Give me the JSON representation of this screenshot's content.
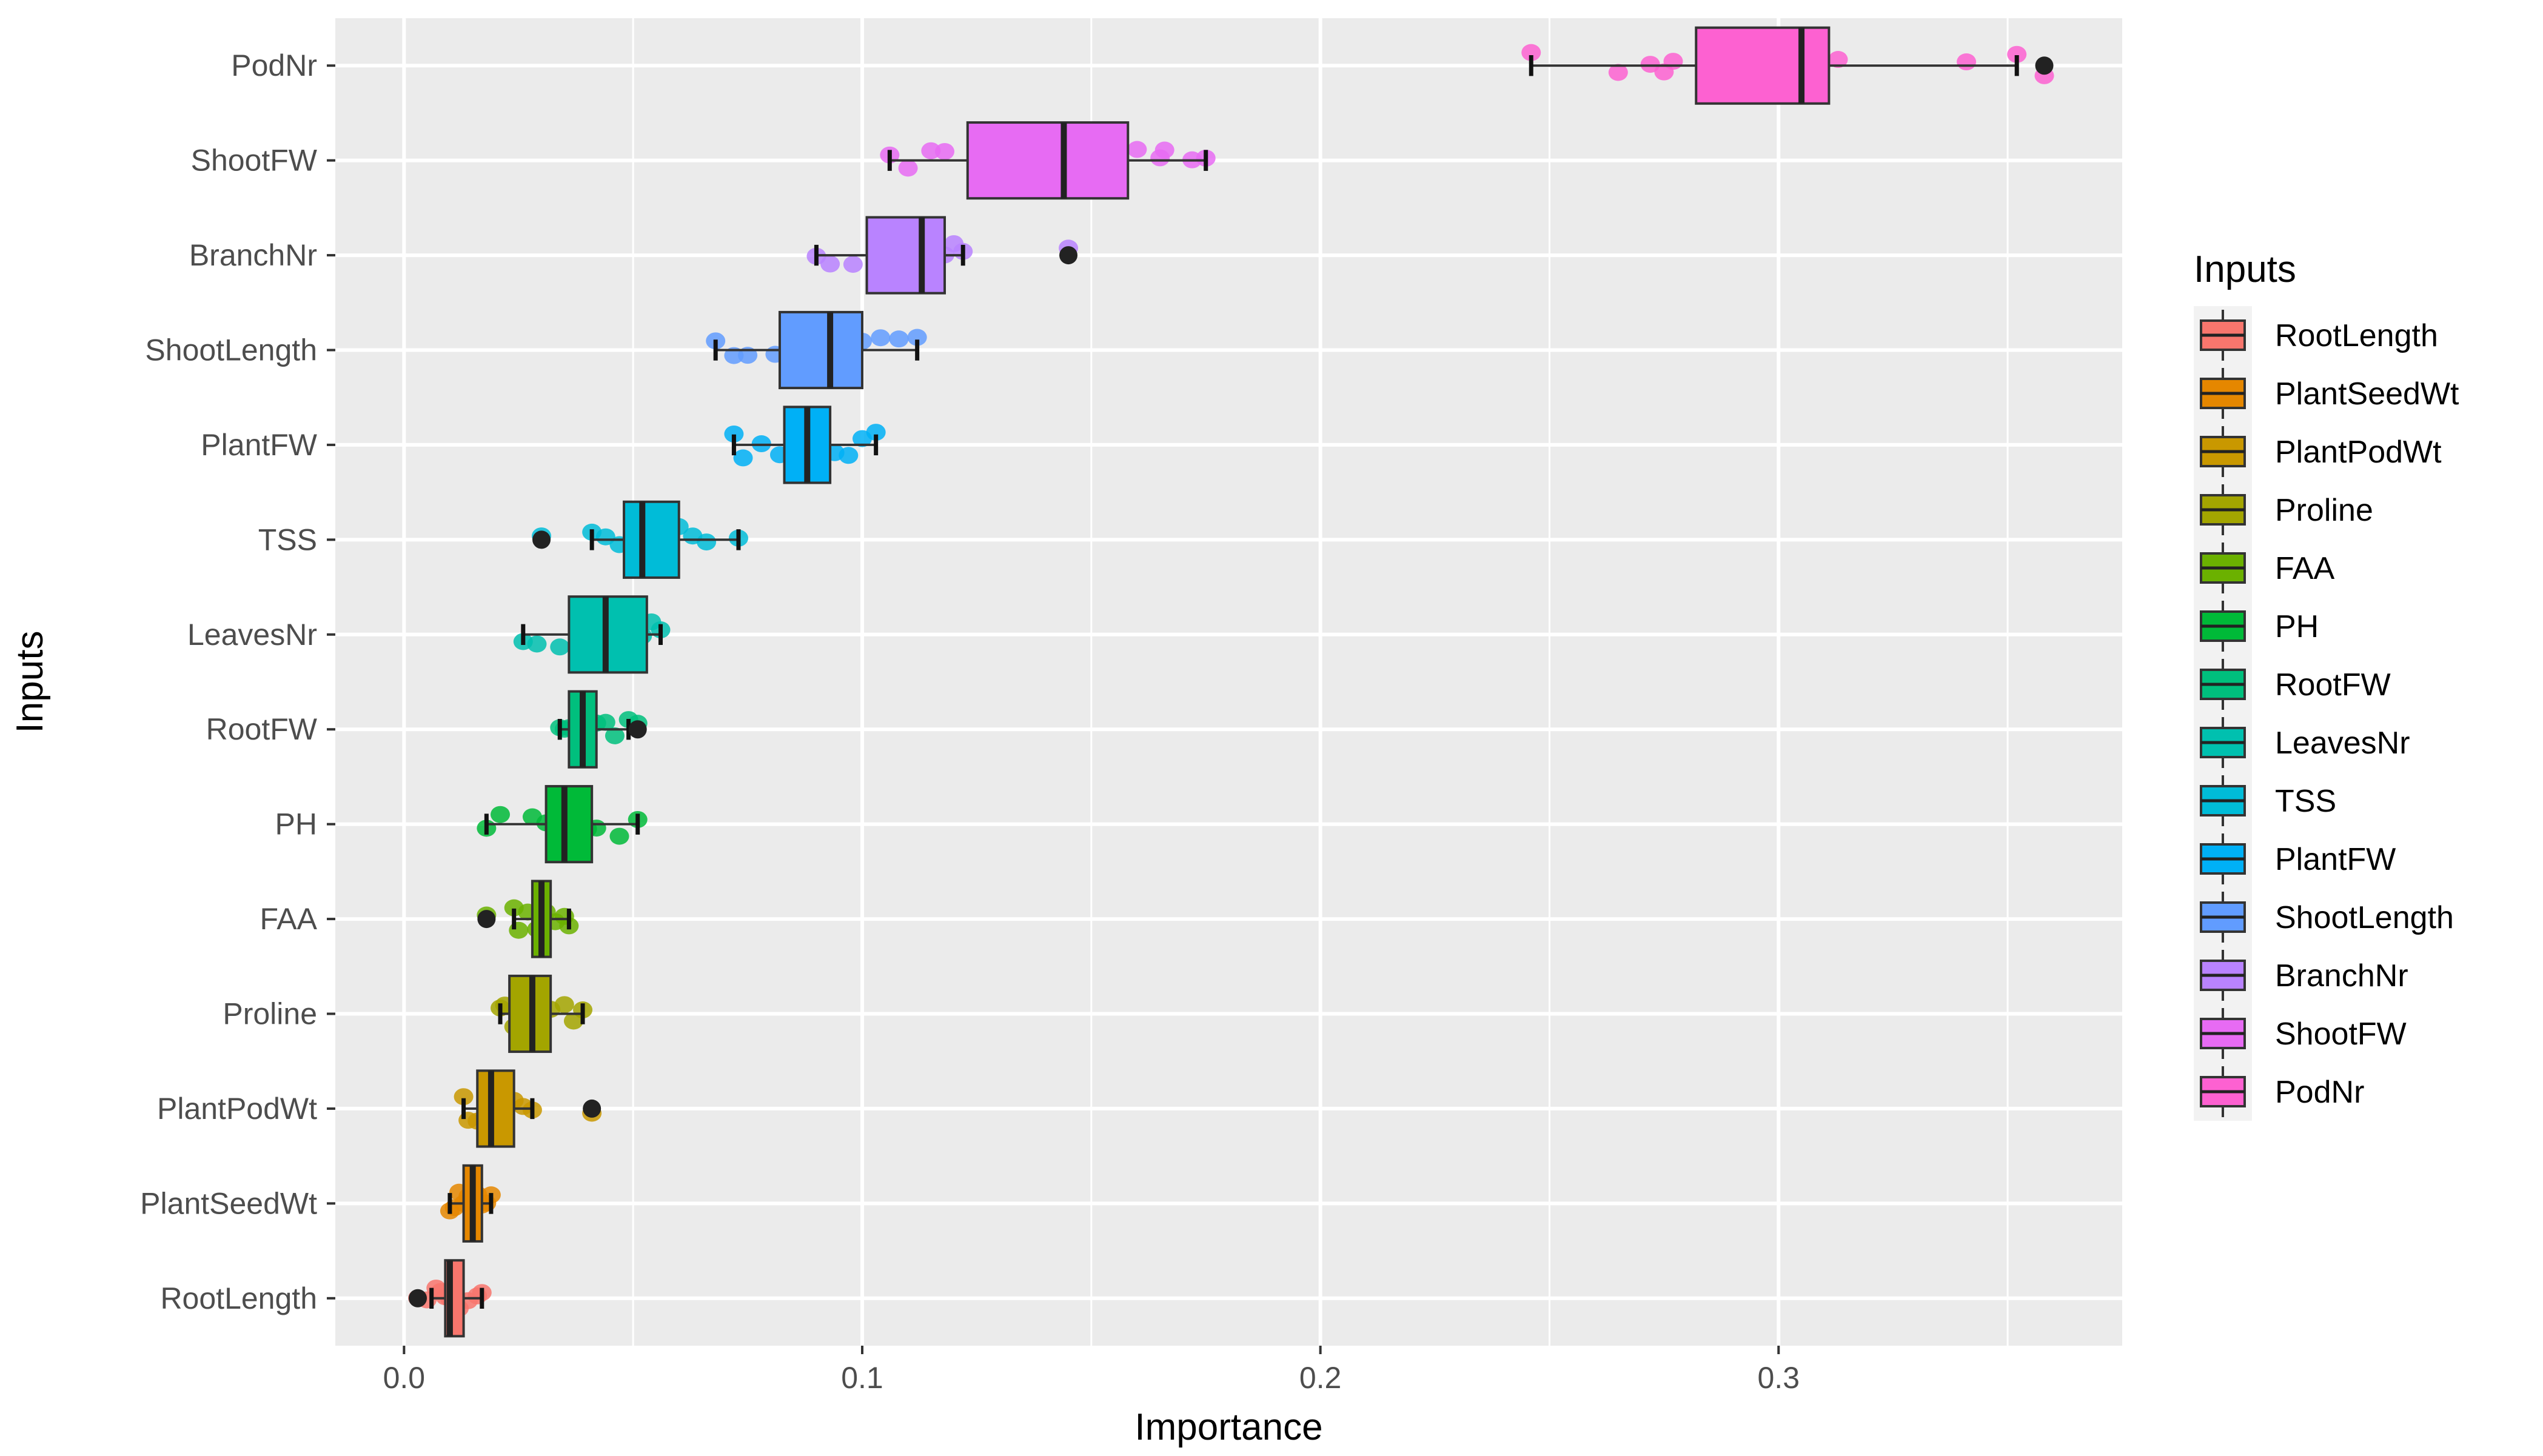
{
  "chart_data": {
    "type": "boxplot",
    "orientation": "horizontal",
    "title": "",
    "xlabel": "Importance",
    "ylabel": "Inputs",
    "xlim": [
      -0.015,
      0.375
    ],
    "xticks": [
      0.0,
      0.1,
      0.2,
      0.3
    ],
    "xtick_labels": [
      "0.0",
      "0.1",
      "0.2",
      "0.3"
    ],
    "grid": true,
    "legend": {
      "title": "Inputs",
      "position": "right"
    },
    "series": [
      {
        "name": "RootLength",
        "color": "#F8766D",
        "min": 0.006,
        "q1": 0.009,
        "median": 0.01,
        "q3": 0.013,
        "max": 0.017,
        "outliers": [
          0.003
        ],
        "points": [
          0.003,
          0.005,
          0.007,
          0.008,
          0.009,
          0.01,
          0.011,
          0.012,
          0.014,
          0.016,
          0.017
        ]
      },
      {
        "name": "PlantSeedWt",
        "color": "#E58700",
        "min": 0.01,
        "q1": 0.013,
        "median": 0.015,
        "q3": 0.017,
        "max": 0.019,
        "outliers": [],
        "points": [
          0.01,
          0.011,
          0.012,
          0.013,
          0.014,
          0.015,
          0.016,
          0.017,
          0.018,
          0.019
        ]
      },
      {
        "name": "PlantPodWt",
        "color": "#C99800",
        "min": 0.013,
        "q1": 0.016,
        "median": 0.019,
        "q3": 0.024,
        "max": 0.028,
        "outliers": [
          0.041
        ],
        "points": [
          0.013,
          0.014,
          0.016,
          0.018,
          0.02,
          0.022,
          0.024,
          0.026,
          0.028,
          0.041
        ]
      },
      {
        "name": "Proline",
        "color": "#A3A500",
        "min": 0.021,
        "q1": 0.023,
        "median": 0.028,
        "q3": 0.032,
        "max": 0.039,
        "outliers": [],
        "points": [
          0.021,
          0.022,
          0.024,
          0.026,
          0.028,
          0.03,
          0.032,
          0.035,
          0.037,
          0.039
        ]
      },
      {
        "name": "FAA",
        "color": "#6BB100",
        "min": 0.024,
        "q1": 0.028,
        "median": 0.03,
        "q3": 0.032,
        "max": 0.036,
        "outliers": [
          0.018
        ],
        "points": [
          0.018,
          0.024,
          0.025,
          0.027,
          0.029,
          0.03,
          0.031,
          0.033,
          0.035,
          0.036
        ]
      },
      {
        "name": "PH",
        "color": "#00BA38",
        "min": 0.018,
        "q1": 0.031,
        "median": 0.035,
        "q3": 0.041,
        "max": 0.051,
        "outliers": [],
        "points": [
          0.018,
          0.021,
          0.028,
          0.031,
          0.033,
          0.035,
          0.037,
          0.04,
          0.042,
          0.047,
          0.051
        ]
      },
      {
        "name": "RootFW",
        "color": "#00BF7D",
        "min": 0.034,
        "q1": 0.036,
        "median": 0.039,
        "q3": 0.042,
        "max": 0.049,
        "outliers": [
          0.051
        ],
        "points": [
          0.034,
          0.035,
          0.036,
          0.038,
          0.039,
          0.04,
          0.042,
          0.044,
          0.046,
          0.049,
          0.051
        ]
      },
      {
        "name": "LeavesNr",
        "color": "#00C0AF",
        "min": 0.026,
        "q1": 0.036,
        "median": 0.044,
        "q3": 0.053,
        "max": 0.056,
        "outliers": [],
        "points": [
          0.026,
          0.029,
          0.034,
          0.038,
          0.042,
          0.045,
          0.048,
          0.052,
          0.054,
          0.056
        ]
      },
      {
        "name": "TSS",
        "color": "#00BCD8",
        "min": 0.041,
        "q1": 0.048,
        "median": 0.052,
        "q3": 0.06,
        "max": 0.073,
        "outliers": [
          0.03
        ],
        "points": [
          0.03,
          0.041,
          0.044,
          0.047,
          0.05,
          0.053,
          0.056,
          0.06,
          0.063,
          0.066,
          0.073
        ]
      },
      {
        "name": "PlantFW",
        "color": "#00B0F6",
        "min": 0.072,
        "q1": 0.083,
        "median": 0.088,
        "q3": 0.093,
        "max": 0.103,
        "outliers": [],
        "points": [
          0.072,
          0.074,
          0.078,
          0.082,
          0.085,
          0.088,
          0.091,
          0.094,
          0.097,
          0.1,
          0.103
        ]
      },
      {
        "name": "ShootLength",
        "color": "#619CFF",
        "min": 0.068,
        "q1": 0.082,
        "median": 0.093,
        "q3": 0.1,
        "max": 0.112,
        "outliers": [],
        "points": [
          0.068,
          0.072,
          0.075,
          0.081,
          0.086,
          0.091,
          0.096,
          0.1,
          0.104,
          0.108,
          0.112
        ]
      },
      {
        "name": "BranchNr",
        "color": "#B983FF",
        "min": 0.09,
        "q1": 0.101,
        "median": 0.113,
        "q3": 0.118,
        "max": 0.122,
        "outliers": [
          0.145
        ],
        "points": [
          0.09,
          0.093,
          0.098,
          0.103,
          0.108,
          0.112,
          0.115,
          0.118,
          0.12,
          0.122,
          0.145
        ]
      },
      {
        "name": "ShootFW",
        "color": "#E76BF3",
        "min": 0.106,
        "q1": 0.123,
        "median": 0.144,
        "q3": 0.158,
        "max": 0.175,
        "outliers": [],
        "points": [
          0.106,
          0.11,
          0.115,
          0.118,
          0.135,
          0.15,
          0.16,
          0.165,
          0.166,
          0.172,
          0.175
        ]
      },
      {
        "name": "PodNr",
        "color": "#FD61D1",
        "min": 0.246,
        "q1": 0.282,
        "median": 0.305,
        "q3": 0.311,
        "max": 0.352,
        "outliers": [
          0.358
        ],
        "points": [
          0.246,
          0.265,
          0.272,
          0.275,
          0.277,
          0.29,
          0.3,
          0.308,
          0.313,
          0.341,
          0.352,
          0.358
        ]
      }
    ]
  }
}
